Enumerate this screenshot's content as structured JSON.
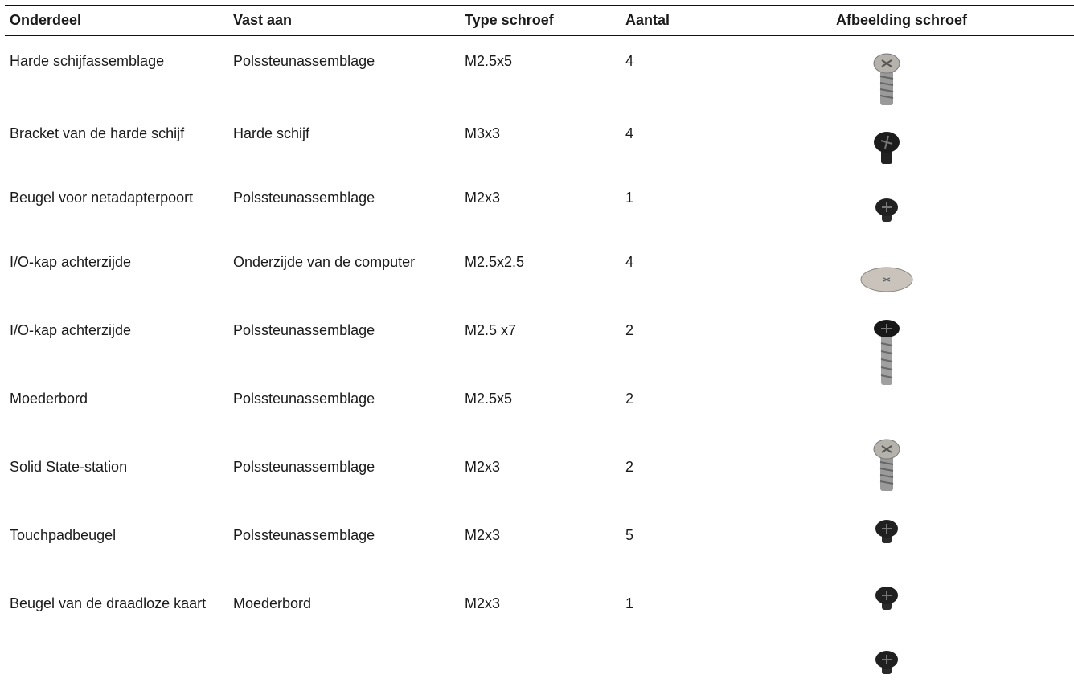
{
  "table": {
    "header": [
      "Onderdeel",
      "Vast aan",
      "Type schroef",
      "Aantal",
      "Afbeelding schroef"
    ],
    "rows": [
      [
        "Harde schijfassemblage",
        "Polssteunassemblage",
        "M2.5x5",
        "4"
      ],
      [
        "Bracket van de harde schijf",
        "Harde schijf",
        "M3x3",
        "4"
      ],
      [
        "Beugel voor netadapterpoort",
        "Polssteunassemblage",
        "M2x3",
        "1"
      ],
      [
        "I/O-kap achterzijde",
        "Onderzijde van de computer",
        "M2.5x2.5",
        "4"
      ],
      [
        "I/O-kap achterzijde",
        "Polssteunassemblage",
        "M2.5 x7",
        "2"
      ],
      [
        "Moederbord",
        "Polssteunassemblage",
        "M2.5x5",
        "2"
      ],
      [
        "Solid State-station",
        "Polssteunassemblage",
        "M2x3",
        "2"
      ],
      [
        "Touchpadbeugel",
        "Polssteunassemblage",
        "M2x3",
        "5"
      ],
      [
        "Beugel van de draadloze kaart",
        "Moederbord",
        "M2x3",
        "1"
      ]
    ]
  }
}
